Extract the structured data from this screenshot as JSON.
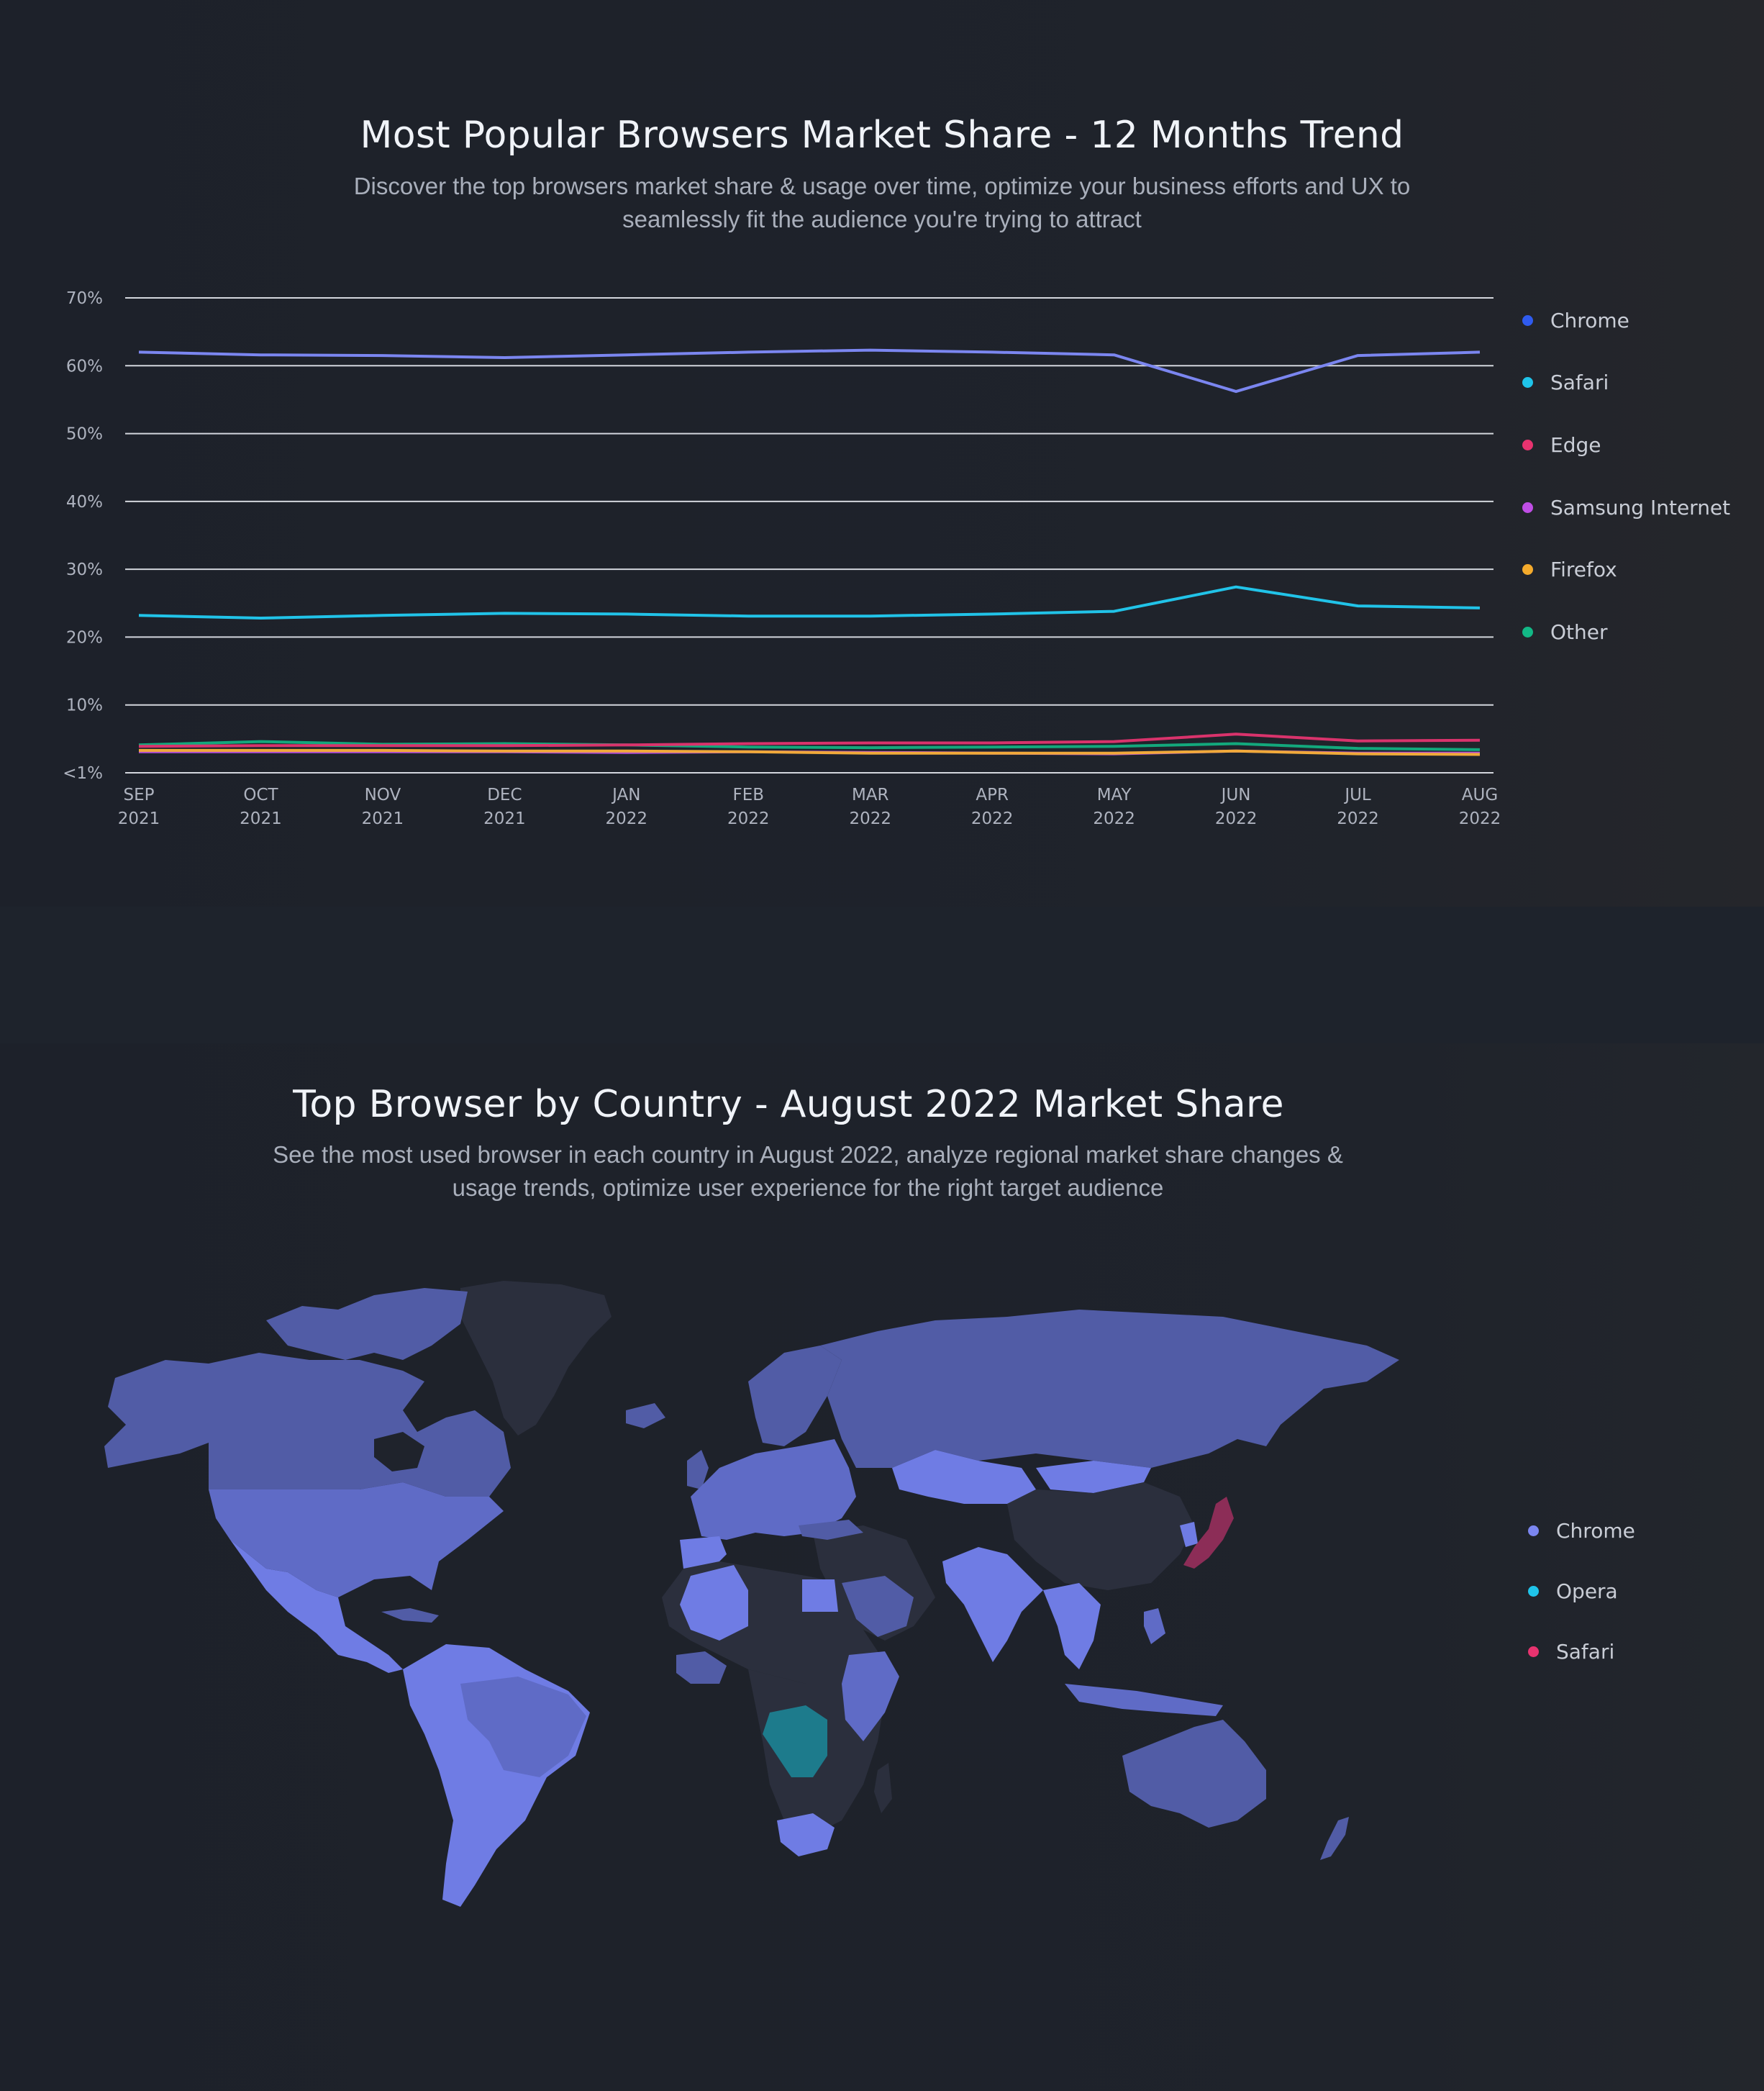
{
  "trend": {
    "title": "Most Popular Browsers Market Share - 12 Months Trend",
    "subtitle_lines": [
      "Discover the top browsers market share & usage over time, optimize your business efforts and UX to",
      "seamlessly fit the audience you're trying to attract"
    ]
  },
  "map": {
    "title": "Top Browser by Country - August 2022 Market Share",
    "subtitle_lines": [
      "See the most used browser in each country in August 2022, analyze regional market share changes &",
      "usage trends, optimize user experience for the right target audience"
    ]
  },
  "chart_data": [
    {
      "type": "line",
      "title": "Most Popular Browsers Market Share - 12 Months Trend",
      "x": [
        "SEP 2021",
        "OCT 2021",
        "NOV 2021",
        "DEC 2021",
        "JAN 2022",
        "FEB 2022",
        "MAR 2022",
        "APR 2022",
        "MAY 2022",
        "JUN 2022",
        "JUL 2022",
        "AUG 2022"
      ],
      "x_tick_labels": [
        [
          "SEP",
          "2021"
        ],
        [
          "OCT",
          "2021"
        ],
        [
          "NOV",
          "2021"
        ],
        [
          "DEC",
          "2021"
        ],
        [
          "JAN",
          "2022"
        ],
        [
          "FEB",
          "2022"
        ],
        [
          "MAR",
          "2022"
        ],
        [
          "APR",
          "2022"
        ],
        [
          "MAY",
          "2022"
        ],
        [
          "JUN",
          "2022"
        ],
        [
          "JUL",
          "2022"
        ],
        [
          "AUG",
          "2022"
        ]
      ],
      "y_ticks": [
        {
          "value": 0,
          "label": "<1%"
        },
        {
          "value": 10,
          "label": "10%"
        },
        {
          "value": 20,
          "label": "20%"
        },
        {
          "value": 30,
          "label": "30%"
        },
        {
          "value": 40,
          "label": "40%"
        },
        {
          "value": 50,
          "label": "50%"
        },
        {
          "value": 60,
          "label": "60%"
        },
        {
          "value": 70,
          "label": "70%"
        }
      ],
      "ylim": [
        0,
        70
      ],
      "grid": true,
      "legend_position": "right",
      "series": [
        {
          "name": "Chrome",
          "legend_color": "#2f5bef",
          "line_color": "#7b86f0",
          "values": [
            62.0,
            61.6,
            61.5,
            61.2,
            61.6,
            62.0,
            62.3,
            62.0,
            61.6,
            56.2,
            61.5,
            62.0
          ]
        },
        {
          "name": "Safari",
          "legend_color": "#1fc4ea",
          "line_color": "#21c3e8",
          "values": [
            23.2,
            22.8,
            23.2,
            23.5,
            23.4,
            23.1,
            23.1,
            23.4,
            23.8,
            27.4,
            24.6,
            24.3
          ]
        },
        {
          "name": "Edge",
          "legend_color": "#e8336f",
          "line_color": "#d9336c",
          "values": [
            3.9,
            4.0,
            4.0,
            4.0,
            4.1,
            4.3,
            4.4,
            4.4,
            4.6,
            5.7,
            4.7,
            4.8
          ]
        },
        {
          "name": "Samsung Internet",
          "legend_color": "#c04ee6",
          "line_color": "#b44fd6",
          "values": [
            3.1,
            3.1,
            3.1,
            3.1,
            3.0,
            3.1,
            3.0,
            2.9,
            2.8,
            3.2,
            2.9,
            2.9
          ]
        },
        {
          "name": "Firefox",
          "legend_color": "#f5ab2c",
          "line_color": "#f0a93a",
          "values": [
            3.3,
            3.3,
            3.3,
            3.2,
            3.2,
            3.1,
            2.9,
            2.9,
            2.9,
            3.2,
            2.8,
            2.7
          ]
        },
        {
          "name": "Other",
          "legend_color": "#12b886",
          "line_color": "#13a87c",
          "values": [
            4.1,
            4.6,
            4.2,
            4.3,
            4.1,
            3.8,
            3.7,
            3.8,
            3.9,
            4.3,
            3.6,
            3.4
          ]
        }
      ]
    },
    {
      "type": "map",
      "title": "Top Browser by Country - August 2022 Market Share",
      "legend_position": "right",
      "categories": [
        {
          "name": "Chrome",
          "color": "#7b86f0"
        },
        {
          "name": "Opera",
          "color": "#1fc4ea"
        },
        {
          "name": "Safari",
          "color": "#e8336f"
        }
      ],
      "region_colors": {
        "chrome_light": "#6f7ce4",
        "chrome_mid": "#5f6bc6",
        "chrome_dark": "#515ca6",
        "opera": "#1d7b8c",
        "safari": "#8c2d57",
        "no_data": "#2b2f3d"
      }
    }
  ]
}
